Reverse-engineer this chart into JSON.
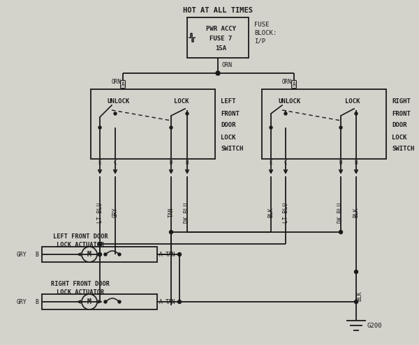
{
  "bg_color": "#d3d2cb",
  "line_color": "#1a1a1a",
  "text_color": "#1a1a1a",
  "title": "HOT AT ALL TIMES",
  "fuse_box_text": [
    "PWR ACCY",
    "FUSE 7",
    "15A"
  ],
  "fuse_label": [
    "FUSE",
    "BLOCK:",
    "I/P"
  ],
  "left_switch_label": [
    "LEFT",
    "FRONT",
    "DOOR",
    "LOCK",
    "SWITCH"
  ],
  "right_switch_label": [
    "RIGHT",
    "FRONT",
    "DOOR",
    "LOCK",
    "SWITCH"
  ],
  "left_actuator_label": [
    "LEFT FRONT DOOR",
    "LOCK ACTUATOR"
  ],
  "right_actuator_label": [
    "RIGHT FRONT DOOR",
    "LOCK ACTUATOR"
  ],
  "ground_label": "G200",
  "figw": 6.0,
  "figh": 4.95,
  "dpi": 100
}
